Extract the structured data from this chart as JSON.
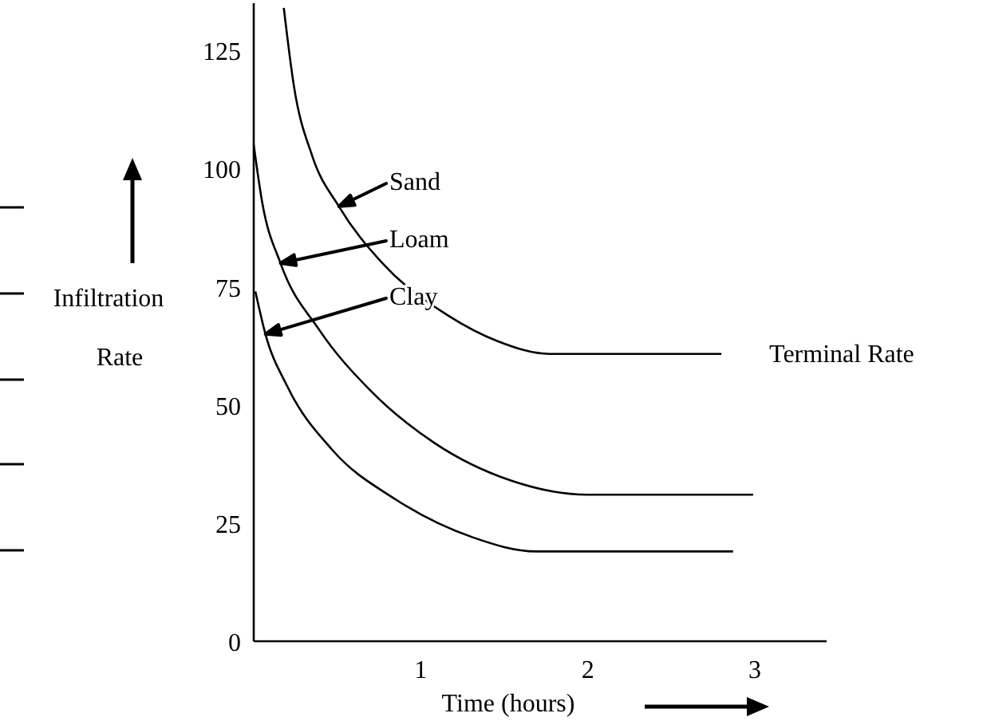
{
  "chart_data": {
    "type": "line",
    "xlabel": "Time (hours)",
    "ylabel": "Infiltration Rate",
    "xlim": [
      0,
      3.43
    ],
    "ylim": [
      0,
      135
    ],
    "xticks": [
      1,
      2,
      3
    ],
    "yticks": [
      0,
      25,
      50,
      75,
      100,
      125
    ],
    "grid": false,
    "marker": "none",
    "line_style": "solid",
    "series": [
      {
        "color": "#000000",
        "x": [
          0.18,
          0.24,
          0.35,
          0.51,
          0.77,
          1.16,
          1.46,
          1.77,
          2.8
        ],
        "values": [
          134,
          117.6,
          102.7,
          92,
          80,
          69,
          63.5,
          60.8,
          60.8
        ]
      },
      {
        "color": "#000000",
        "x": [
          0,
          0.05,
          0.16,
          0.39,
          0.7,
          1.08,
          1.54,
          2.0,
          2.99
        ],
        "values": [
          105,
          93,
          80,
          66,
          53,
          42,
          34,
          31,
          31
        ]
      },
      {
        "color": "#000000",
        "x": [
          0.01,
          0.07,
          0.2,
          0.47,
          0.85,
          1.31,
          1.69,
          2.87
        ],
        "values": [
          74,
          65,
          54,
          40.5,
          30,
          22,
          19,
          19
        ]
      }
    ],
    "annotations": [
      {
        "text": "Sand",
        "x": 0.51,
        "y": 92
      },
      {
        "text": "Loam",
        "x": 0.16,
        "y": 80
      },
      {
        "text": "Clay",
        "x": 0.07,
        "y": 65
      },
      {
        "text": "Terminal Rate",
        "x": 2.8,
        "y": 60.8
      }
    ]
  }
}
